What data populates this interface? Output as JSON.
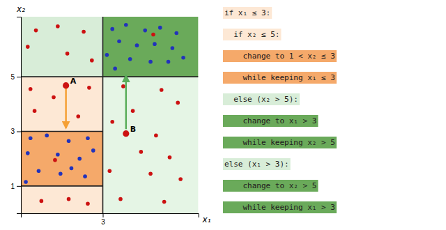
{
  "chart_data": {
    "type": "scatter",
    "xlabel": "x₁",
    "ylabel": "x₂",
    "xlim": [
      0,
      6.5
    ],
    "ylim": [
      0,
      7.2
    ],
    "xticks": [
      3
    ],
    "yticks": [
      1,
      3,
      5
    ],
    "grid": false,
    "regions": [
      {
        "xmin": 0,
        "xmax": 3,
        "ymin": 5,
        "ymax": 7.2,
        "color": "#d8edd8"
      },
      {
        "xmin": 3,
        "xmax": 6.5,
        "ymin": 5,
        "ymax": 7.2,
        "color": "#6aaa5a"
      },
      {
        "xmin": 0,
        "xmax": 3,
        "ymin": 3,
        "ymax": 5,
        "color": "#fde8d5"
      },
      {
        "xmin": 0,
        "xmax": 3,
        "ymin": 1,
        "ymax": 3,
        "color": "#f5a96a"
      },
      {
        "xmin": 0,
        "xmax": 3,
        "ymin": 0,
        "ymax": 1,
        "color": "#fde8d5"
      },
      {
        "xmin": 3,
        "xmax": 6.5,
        "ymin": 0,
        "ymax": 5,
        "color": "#e5f5e5"
      }
    ],
    "lines": [
      {
        "x": [
          3,
          3
        ],
        "y": [
          0,
          7.2
        ]
      },
      {
        "x": [
          0,
          3
        ],
        "y": [
          5,
          5
        ]
      },
      {
        "x": [
          3,
          6.5
        ],
        "y": [
          5,
          5
        ]
      },
      {
        "x": [
          0,
          3
        ],
        "y": [
          3,
          3
        ]
      },
      {
        "x": [
          0,
          3
        ],
        "y": [
          1,
          1
        ]
      }
    ],
    "series": [
      {
        "color": "#cc1111",
        "x": [
          0.55,
          1.35,
          2.3,
          0.25,
          1.7,
          2.6
        ],
        "values": [
          6.7,
          6.85,
          6.65,
          6.1,
          5.85,
          5.6
        ]
      },
      {
        "color": "#cc1111",
        "x": [
          4.85
        ],
        "values": [
          6.55
        ]
      },
      {
        "color": "#2233bb",
        "x": [
          3.35,
          3.85,
          4.55,
          5.1,
          5.7,
          3.6,
          4.25,
          4.9,
          5.55,
          3.15,
          4.0,
          4.75,
          5.4,
          5.95,
          3.45
        ],
        "values": [
          6.75,
          6.9,
          6.7,
          6.8,
          6.6,
          6.3,
          6.15,
          6.2,
          6.05,
          5.8,
          5.65,
          5.55,
          5.55,
          5.7,
          5.3
        ]
      },
      {
        "color": "#cc1111",
        "x": [
          0.35,
          1.2,
          2.5,
          0.5,
          2.1
        ],
        "values": [
          4.55,
          4.25,
          4.6,
          3.75,
          3.55
        ]
      },
      {
        "color": "#2233bb",
        "x": [
          0.35,
          0.95,
          1.75,
          2.45,
          0.25,
          1.35,
          2.15,
          2.65,
          0.65,
          1.45,
          2.35,
          0.18,
          1.85
        ],
        "values": [
          2.75,
          2.85,
          2.65,
          2.75,
          2.2,
          2.15,
          2.0,
          2.3,
          1.55,
          1.45,
          1.35,
          1.15,
          1.65
        ]
      },
      {
        "color": "#cc1111",
        "x": [
          1.25
        ],
        "values": [
          1.95
        ]
      },
      {
        "color": "#cc1111",
        "x": [
          0.75,
          1.75,
          2.45
        ],
        "values": [
          0.45,
          0.52,
          0.35
        ]
      },
      {
        "color": "#cc1111",
        "x": [
          3.75,
          5.15,
          4.1,
          5.75,
          3.35,
          4.95,
          4.4,
          5.45,
          3.25,
          4.75,
          5.85,
          3.65,
          5.25
        ],
        "values": [
          4.65,
          4.52,
          3.75,
          4.05,
          3.35,
          2.85,
          2.25,
          2.05,
          1.55,
          1.45,
          1.25,
          0.52,
          0.42
        ]
      }
    ],
    "annotations": [
      {
        "text": "A",
        "x": 1.65,
        "y": 4.68,
        "color": "#cc1111"
      },
      {
        "text": "B",
        "x": 3.85,
        "y": 2.92,
        "color": "#cc1111"
      }
    ],
    "arrows": [
      {
        "color": "#f5a035",
        "start": [
          1.65,
          4.58
        ],
        "end": [
          1.65,
          3.12
        ]
      },
      {
        "color": "#5aad5a",
        "start": [
          3.85,
          3.08
        ],
        "end": [
          3.85,
          5.05
        ]
      }
    ],
    "code_lines": [
      {
        "text": "if x₁ ≤ 3:",
        "bg": "#fde8d5"
      },
      {
        "text": "  if x₂ ≤ 5:",
        "bg": "#fde8d5"
      },
      {
        "text": "    change to 1 < x₂ ≤ 3",
        "bg": "#f5a96a"
      },
      {
        "text": "    while keeping x₁ ≤ 3",
        "bg": "#f5a96a"
      },
      {
        "text": "  else (x₂ > 5):",
        "bg": "#d8edd8"
      },
      {
        "text": "    change to x₁ > 3",
        "bg": "#6aaa5a"
      },
      {
        "text": "    while keeping x₂ > 5",
        "bg": "#6aaa5a"
      },
      {
        "text": "else (x₁ > 3):",
        "bg": "#d8edd8"
      },
      {
        "text": "    change to x₂ > 5",
        "bg": "#6aaa5a"
      },
      {
        "text": "    while keeping x₁ > 3",
        "bg": "#6aaa5a"
      }
    ]
  }
}
